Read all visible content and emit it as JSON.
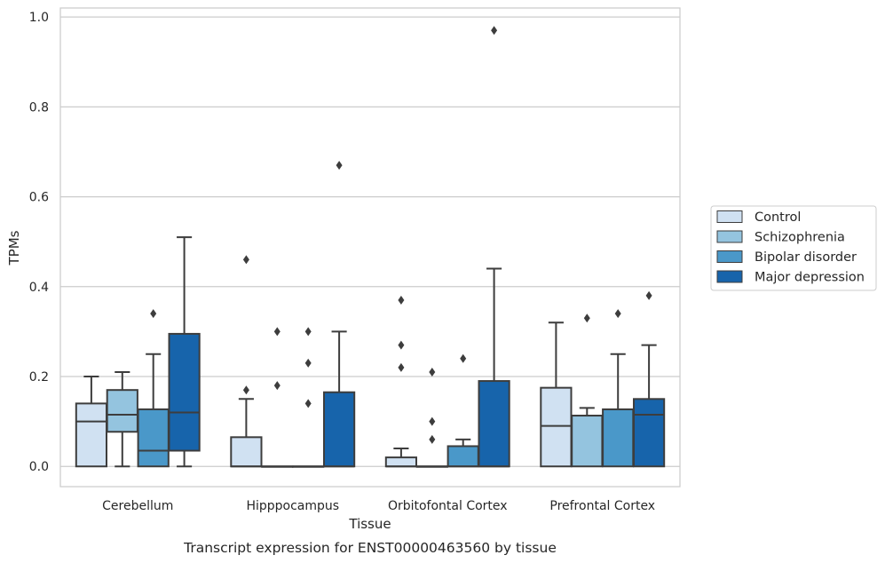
{
  "chart_data": {
    "type": "box",
    "xlabel": "Tissue",
    "ylabel": "TPMs",
    "caption": "Transcript expression for ENST00000463560 by tissue",
    "ylim": [
      -0.045,
      1.02
    ],
    "yticks": [
      0.0,
      0.2,
      0.4,
      0.6,
      0.8,
      1.0
    ],
    "ytick_labels": [
      "0.0",
      "0.2",
      "0.4",
      "0.6",
      "0.8",
      "1.0"
    ],
    "grid": "horizontal",
    "legend_position": "right",
    "categories": [
      "Cerebellum",
      "Hipppocampus",
      "Orbitofontal Cortex",
      "Prefrontal Cortex"
    ],
    "series": [
      {
        "name": "Control",
        "color": "#d0e1f2",
        "boxes": [
          {
            "whisker_low": 0.0,
            "q1": 0.0,
            "median": 0.1,
            "q3": 0.14,
            "whisker_high": 0.2,
            "outliers": []
          },
          {
            "whisker_low": 0.0,
            "q1": 0.0,
            "median": 0.0,
            "q3": 0.065,
            "whisker_high": 0.15,
            "outliers": [
              0.17,
              0.46
            ]
          },
          {
            "whisker_low": 0.0,
            "q1": 0.0,
            "median": 0.0,
            "q3": 0.02,
            "whisker_high": 0.04,
            "outliers": [
              0.22,
              0.27,
              0.37
            ]
          },
          {
            "whisker_low": 0.0,
            "q1": 0.0,
            "median": 0.09,
            "q3": 0.175,
            "whisker_high": 0.32,
            "outliers": []
          }
        ]
      },
      {
        "name": "Schizophrenia",
        "color": "#94c4df",
        "boxes": [
          {
            "whisker_low": 0.0,
            "q1": 0.077,
            "median": 0.115,
            "q3": 0.17,
            "whisker_high": 0.21,
            "outliers": []
          },
          {
            "whisker_low": 0.0,
            "q1": 0.0,
            "median": 0.0,
            "q3": 0.0,
            "whisker_high": 0.0,
            "outliers": [
              0.18,
              0.3
            ]
          },
          {
            "whisker_low": 0.0,
            "q1": 0.0,
            "median": 0.0,
            "q3": 0.0,
            "whisker_high": 0.0,
            "outliers": [
              0.06,
              0.1,
              0.21
            ]
          },
          {
            "whisker_low": 0.0,
            "q1": 0.0,
            "median": 0.113,
            "q3": 0.113,
            "whisker_high": 0.13,
            "outliers": [
              0.33
            ]
          }
        ]
      },
      {
        "name": "Bipolar disorder",
        "color": "#4a98c9",
        "boxes": [
          {
            "whisker_low": 0.0,
            "q1": 0.0,
            "median": 0.035,
            "q3": 0.127,
            "whisker_high": 0.25,
            "outliers": [
              0.34
            ]
          },
          {
            "whisker_low": 0.0,
            "q1": 0.0,
            "median": 0.0,
            "q3": 0.0,
            "whisker_high": 0.0,
            "outliers": [
              0.14,
              0.23,
              0.3
            ]
          },
          {
            "whisker_low": 0.0,
            "q1": 0.0,
            "median": 0.0,
            "q3": 0.045,
            "whisker_high": 0.06,
            "outliers": [
              0.24
            ]
          },
          {
            "whisker_low": 0.0,
            "q1": 0.0,
            "median": 0.127,
            "q3": 0.127,
            "whisker_high": 0.25,
            "outliers": [
              0.34
            ]
          }
        ]
      },
      {
        "name": "Major depression",
        "color": "#1764ab",
        "boxes": [
          {
            "whisker_low": 0.0,
            "q1": 0.035,
            "median": 0.12,
            "q3": 0.295,
            "whisker_high": 0.51,
            "outliers": []
          },
          {
            "whisker_low": 0.0,
            "q1": 0.0,
            "median": 0.0,
            "q3": 0.165,
            "whisker_high": 0.3,
            "outliers": [
              0.67
            ]
          },
          {
            "whisker_low": 0.0,
            "q1": 0.0,
            "median": 0.0,
            "q3": 0.19,
            "whisker_high": 0.44,
            "outliers": [
              0.97
            ]
          },
          {
            "whisker_low": 0.0,
            "q1": 0.0,
            "median": 0.115,
            "q3": 0.15,
            "whisker_high": 0.27,
            "outliers": [
              0.38
            ]
          }
        ]
      }
    ]
  }
}
